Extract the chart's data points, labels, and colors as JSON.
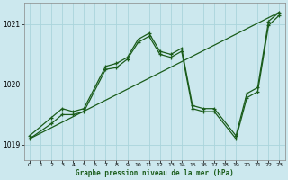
{
  "xlabel": "Graphe pression niveau de la mer (hPa)",
  "background_color": "#cce8ee",
  "grid_color": "#aad4dc",
  "line_color": "#1a5c1a",
  "xlim": [
    -0.5,
    23.5
  ],
  "ylim": [
    1018.75,
    1021.35
  ],
  "yticks": [
    1019,
    1020,
    1021
  ],
  "xticks": [
    0,
    1,
    2,
    3,
    4,
    5,
    6,
    7,
    8,
    9,
    10,
    11,
    12,
    13,
    14,
    15,
    16,
    17,
    18,
    19,
    20,
    21,
    22,
    23
  ],
  "trend_x": [
    0,
    23
  ],
  "trend_y": [
    1019.1,
    1021.2
  ],
  "series2_x": [
    0,
    2,
    3,
    4,
    5,
    7,
    8,
    9,
    10,
    11,
    12,
    13,
    14,
    15,
    16,
    17,
    19,
    20,
    21,
    22,
    23
  ],
  "series2_y": [
    1019.15,
    1019.45,
    1019.6,
    1019.55,
    1019.6,
    1020.3,
    1020.35,
    1020.45,
    1020.75,
    1020.85,
    1020.55,
    1020.5,
    1020.6,
    1019.65,
    1019.6,
    1019.6,
    1019.15,
    1019.85,
    1019.95,
    1021.05,
    1021.2
  ],
  "series3_x": [
    0,
    2,
    3,
    4,
    5,
    7,
    8,
    9,
    10,
    11,
    12,
    13,
    14,
    15,
    16,
    17,
    19,
    20,
    21,
    22,
    23
  ],
  "series3_y": [
    1019.1,
    1019.35,
    1019.5,
    1019.5,
    1019.55,
    1020.25,
    1020.28,
    1020.42,
    1020.7,
    1020.8,
    1020.5,
    1020.45,
    1020.55,
    1019.6,
    1019.55,
    1019.55,
    1019.1,
    1019.78,
    1019.88,
    1020.98,
    1021.15
  ]
}
